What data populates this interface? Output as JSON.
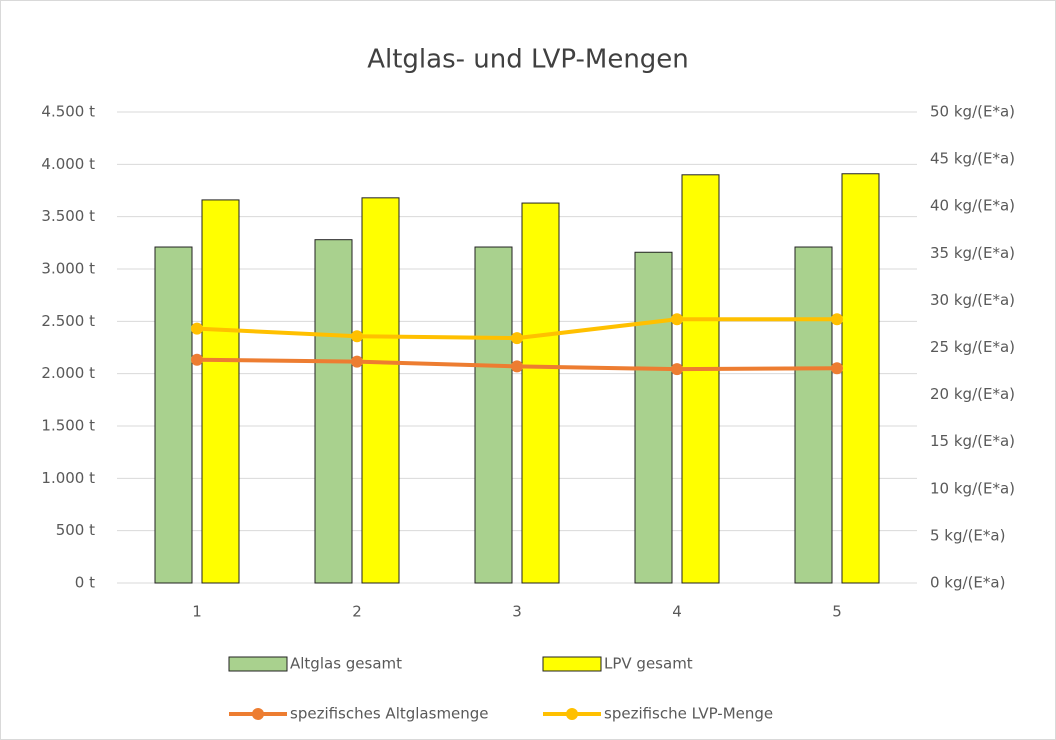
{
  "chart_data": {
    "type": "bar_line",
    "title": "Altglas- und LVP-Mengen",
    "categories": [
      "1",
      "2",
      "3",
      "4",
      "5"
    ],
    "series": [
      {
        "name": "Altglas gesamt",
        "type": "bar",
        "color": "#a9d18e",
        "values": [
          3210,
          3280,
          3210,
          3160,
          3210
        ]
      },
      {
        "name": "LPV gesamt",
        "type": "bar",
        "color": "#ffff00",
        "values": [
          3660,
          3680,
          3630,
          3900,
          3910
        ]
      },
      {
        "name": "spezifisches Altglasmenge",
        "type": "line",
        "axis": "y2",
        "color": "#ed7d31",
        "values": [
          23.7,
          23.5,
          23.0,
          22.7,
          22.8
        ]
      },
      {
        "name": "spezifische LVP-Menge",
        "type": "line",
        "axis": "y2",
        "color": "#ffc000",
        "values": [
          27.0,
          26.2,
          26.0,
          28.0,
          28.0
        ]
      }
    ],
    "ylim": [
      0,
      4500
    ],
    "yticks": [
      {
        "value": 0,
        "label": "0 t"
      },
      {
        "value": 500,
        "label": "500 t"
      },
      {
        "value": 1000,
        "label": "1.000 t"
      },
      {
        "value": 1500,
        "label": "1.500 t"
      },
      {
        "value": 2000,
        "label": "2.000 t"
      },
      {
        "value": 2500,
        "label": "2.500 t"
      },
      {
        "value": 3000,
        "label": "3.000 t"
      },
      {
        "value": 3500,
        "label": "3.500 t"
      },
      {
        "value": 4000,
        "label": "4.000 t"
      },
      {
        "value": 4500,
        "label": "4.500 t"
      }
    ],
    "y2lim": [
      0,
      50
    ],
    "y2ticks": [
      {
        "value": 0,
        "label": "0 kg/(E*a)"
      },
      {
        "value": 5,
        "label": "5 kg/(E*a)"
      },
      {
        "value": 10,
        "label": "10 kg/(E*a)"
      },
      {
        "value": 15,
        "label": "15 kg/(E*a)"
      },
      {
        "value": 20,
        "label": "20 kg/(E*a)"
      },
      {
        "value": 25,
        "label": "25 kg/(E*a)"
      },
      {
        "value": 30,
        "label": "30 kg/(E*a)"
      },
      {
        "value": 35,
        "label": "35 kg/(E*a)"
      },
      {
        "value": 40,
        "label": "40 kg/(E*a)"
      },
      {
        "value": 45,
        "label": "45 kg/(E*a)"
      },
      {
        "value": 50,
        "label": "50 kg/(E*a)"
      }
    ],
    "grid": true,
    "legend": "bottom"
  }
}
